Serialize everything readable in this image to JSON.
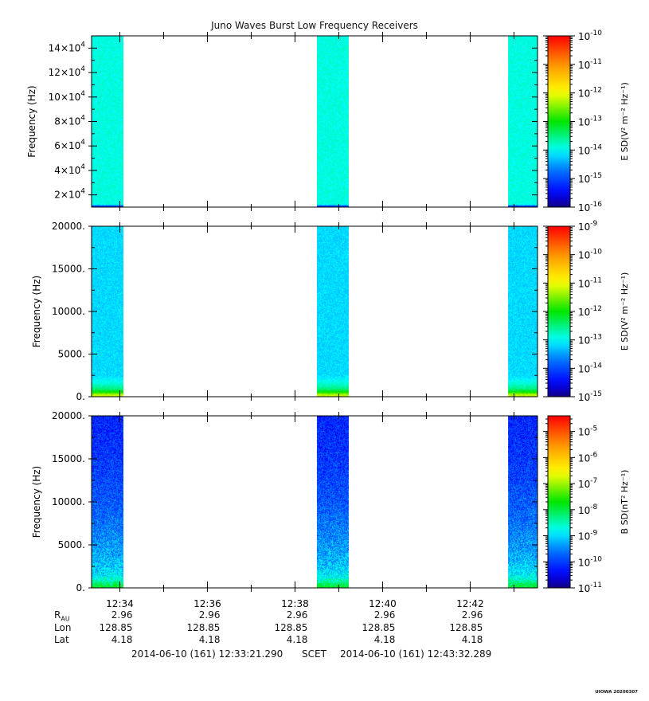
{
  "chart_data": {
    "title": "Juno Waves Burst Low Frequency Receivers",
    "type": "heatmap",
    "x_axis": {
      "tick_labels": [
        "12:34",
        "12:36",
        "12:38",
        "12:40",
        "12:42"
      ],
      "time_range": [
        "2014-06-10 12:33:21.290",
        "2014-06-10 12:43:32.289"
      ]
    },
    "burst_intervals": [
      [
        "12:33:21.3",
        "12:34:05"
      ],
      [
        "12:38:30",
        "12:39:14"
      ],
      [
        "12:42:52",
        "12:43:32.3"
      ]
    ],
    "panels": [
      {
        "ylabel": "Frequency (Hz)",
        "ylim": [
          10000,
          150000
        ],
        "yticks": [
          20000,
          40000,
          60000,
          80000,
          100000,
          120000,
          140000
        ],
        "ytick_labels": [
          {
            "mant": "2×10",
            "exp": "4"
          },
          {
            "mant": "4×10",
            "exp": "4"
          },
          {
            "mant": "6×10",
            "exp": "4"
          },
          {
            "mant": "8×10",
            "exp": "4"
          },
          {
            "mant": "10×10",
            "exp": "4"
          },
          {
            "mant": "12×10",
            "exp": "4"
          },
          {
            "mant": "14×10",
            "exp": "4"
          }
        ],
        "colorbar": {
          "label": "E SD(V² m⁻² Hz⁻¹)",
          "log_range": [
            -16,
            -10
          ],
          "ticks": [
            {
              "exp": "-10",
              "v": -10
            },
            {
              "exp": "-11",
              "v": -11
            },
            {
              "exp": "-12",
              "v": -12
            },
            {
              "exp": "-13",
              "v": -13
            },
            {
              "exp": "-14",
              "v": -14
            },
            {
              "exp": "-15",
              "v": -15
            },
            {
              "exp": "-16",
              "v": -16
            }
          ]
        },
        "profile_freq": [
          10000,
          11000,
          12000,
          150000
        ],
        "profile_log": [
          -15.4,
          -15.0,
          -13.9,
          -13.9
        ]
      },
      {
        "ylabel": "Frequency (Hz)",
        "ylim": [
          0,
          20000
        ],
        "yticks": [
          0,
          5000,
          10000,
          15000,
          20000
        ],
        "ytick_labels": [
          "0.",
          "5000.",
          "10000.",
          "15000.",
          "20000."
        ],
        "colorbar": {
          "label": "E SD(V² m⁻² Hz⁻¹)",
          "log_range": [
            -15,
            -9
          ],
          "ticks": [
            {
              "exp": "-9",
              "v": -9
            },
            {
              "exp": "-10",
              "v": -10
            },
            {
              "exp": "-11",
              "v": -11
            },
            {
              "exp": "-12",
              "v": -12
            },
            {
              "exp": "-13",
              "v": -13
            },
            {
              "exp": "-14",
              "v": -14
            },
            {
              "exp": "-15",
              "v": -15
            }
          ]
        },
        "profile_freq": [
          0,
          200,
          500,
          900,
          1600,
          2500,
          20000
        ],
        "profile_log": [
          -11.3,
          -11.2,
          -11.9,
          -12.5,
          -12.9,
          -13.2,
          -13.2
        ]
      },
      {
        "ylabel": "Frequency (Hz)",
        "ylim": [
          0,
          20000
        ],
        "yticks": [
          0,
          5000,
          10000,
          15000,
          20000
        ],
        "ytick_labels": [
          "0.",
          "5000.",
          "10000.",
          "15000.",
          "20000."
        ],
        "colorbar": {
          "label": "B SD(nT² Hz⁻¹)",
          "log_range": [
            -11,
            -4.4
          ],
          "ticks": [
            {
              "exp": "-5",
              "v": -5
            },
            {
              "exp": "-6",
              "v": -6
            },
            {
              "exp": "-7",
              "v": -7
            },
            {
              "exp": "-8",
              "v": -8
            },
            {
              "exp": "-9",
              "v": -9
            },
            {
              "exp": "-10",
              "v": -10
            },
            {
              "exp": "-11",
              "v": -11
            }
          ]
        },
        "profile_freq": [
          0,
          300,
          800,
          1500,
          3000,
          6000,
          10000,
          14000,
          20000
        ],
        "profile_log": [
          -7.9,
          -8.0,
          -8.5,
          -8.9,
          -9.2,
          -9.5,
          -9.8,
          -10.0,
          -10.2
        ]
      }
    ],
    "ephemeris": {
      "labels": {
        "r_main": "R",
        "r_sub": "AU",
        "lon": "Lon",
        "lat": "Lat"
      },
      "r": [
        "2.96",
        "2.96",
        "2.96",
        "2.96",
        "2.96"
      ],
      "lon": [
        "128.85",
        "128.85",
        "128.85",
        "128.85",
        "128.85"
      ],
      "lat": [
        "4.18",
        "4.18",
        "4.18",
        "4.18",
        "4.18"
      ]
    },
    "footer": {
      "start": "2014-06-10 (161) 12:33:21.290",
      "scet": "SCET",
      "end": "2014-06-10 (161) 12:43:32.289"
    },
    "stamp": "UIOWA 20200307"
  }
}
